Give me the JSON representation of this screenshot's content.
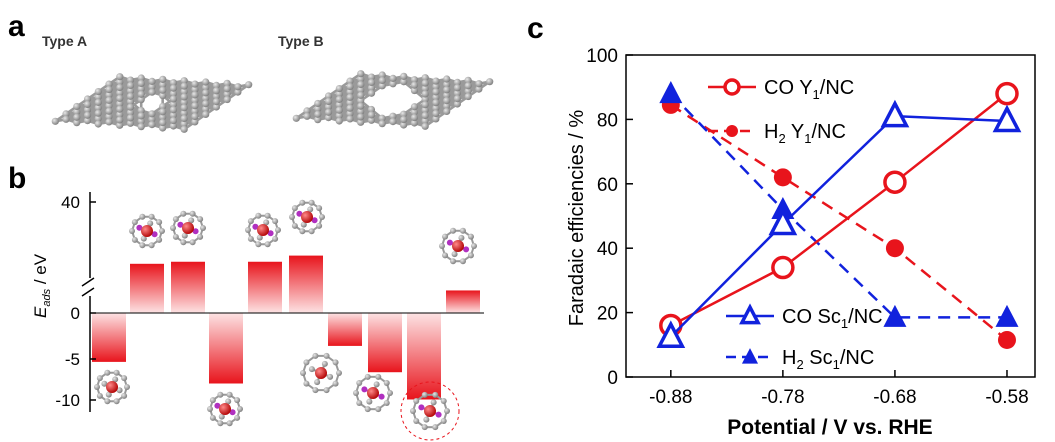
{
  "panels": {
    "a": {
      "label": "a",
      "structures": [
        "Type A",
        "Type B"
      ]
    },
    "b": {
      "label": "b",
      "ylabel_main": "E",
      "ylabel_sub": "ads",
      "ylabel_unit": " / eV",
      "yticks": [
        "40",
        "0",
        "-5",
        "-10"
      ]
    },
    "c": {
      "label": "c"
    }
  },
  "chart_data": [
    {
      "type": "bar",
      "panel": "b",
      "ylabel": "E_ads / eV",
      "ylim": [
        -12.5,
        44
      ],
      "axis_break": "between 0 and 40",
      "values": [
        -5.2,
        12,
        12.5,
        -7.5,
        12.5,
        14,
        -3.5,
        -6.3,
        -9.2,
        5.5
      ],
      "ticks": [
        40,
        0,
        -5,
        -10
      ],
      "colors": {
        "bar": "#e8141c",
        "bar_light": "#fde3e4"
      }
    },
    {
      "type": "line",
      "panel": "c",
      "xlabel": "Potential / V vs. RHE",
      "ylabel": "Faradaic efficiencies / %",
      "x": [
        -0.88,
        -0.78,
        -0.68,
        -0.58
      ],
      "xticks": [
        "-0.88",
        "-0.78",
        "-0.68",
        "-0.58"
      ],
      "yticks": [
        "0",
        "20",
        "40",
        "60",
        "80",
        "100"
      ],
      "ylim": [
        0,
        100
      ],
      "xlim": [
        -0.92,
        -0.555
      ],
      "legend_position": "left, inside plot",
      "series": [
        {
          "name": "CO Y1/NC",
          "label_main": "CO Y",
          "label_sub": "1",
          "label_rest": "/NC",
          "values": [
            16,
            34,
            60.5,
            88
          ],
          "color": "#e8141c",
          "marker": "open-circle",
          "line": "solid"
        },
        {
          "name": "H2 Y1/NC",
          "label_main": "H",
          "label_sub": "2",
          "label_mid": " Y",
          "label_sub2": "1",
          "label_rest": "/NC",
          "values": [
            84.5,
            62,
            40,
            11.5
          ],
          "color": "#e8141c",
          "marker": "filled-circle",
          "line": "dashed"
        },
        {
          "name": "CO Sc1/NC",
          "label_main": "CO Sc",
          "label_sub": "1",
          "label_rest": "/NC",
          "values": [
            12.5,
            47.5,
            81,
            79.5
          ],
          "color": "#1122dd",
          "marker": "open-triangle",
          "line": "solid"
        },
        {
          "name": "H2 Sc1/NC",
          "label_main": "H",
          "label_sub": "2",
          "label_mid": " Sc",
          "label_sub2": "1",
          "label_rest": "/NC",
          "values": [
            88,
            52,
            18.5,
            18.5
          ],
          "color": "#1122dd",
          "marker": "filled-triangle",
          "line": "dashed"
        }
      ]
    }
  ]
}
